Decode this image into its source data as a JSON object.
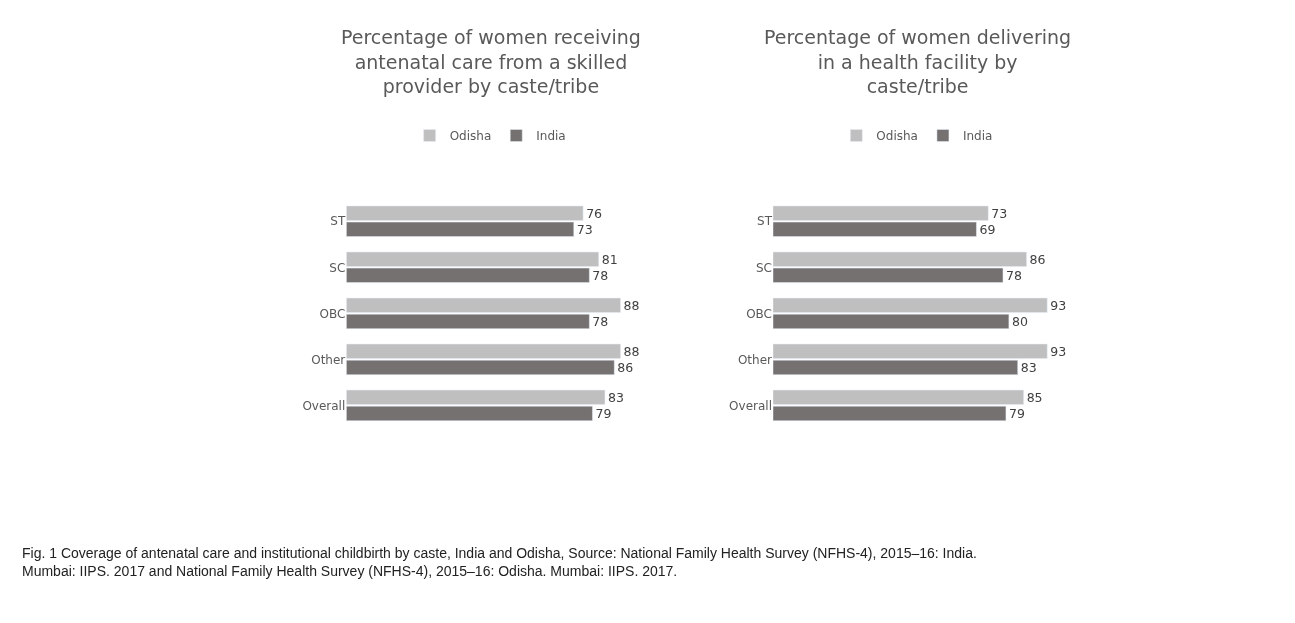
{
  "chart_data": [
    {
      "type": "bar",
      "orientation": "horizontal",
      "title": "Percentage of women receiving antenatal care from a skilled provider by caste/tribe",
      "categories": [
        "ST",
        "SC",
        "OBC",
        "Other",
        "Overall"
      ],
      "series": [
        {
          "name": "Odisha",
          "color": "#bfbfbf",
          "values": [
            76,
            81,
            88,
            88,
            83
          ]
        },
        {
          "name": "India",
          "color": "#767171",
          "values": [
            73,
            78,
            78,
            86,
            79
          ]
        }
      ],
      "data_labels": true,
      "legend": "top",
      "annotations": [
        "Fig. 1 Coverage of antenatal care and institutional childbirth by caste, India and Odisha, Source: National Family Health Survey (NFHS-4), 2015–16: India. Mumbai: IIPS. 2017 and National Family Health Survey (NFHS-4), 2015–16: Odisha. Mumbai: IIPS. 2017."
      ]
    },
    {
      "type": "bar",
      "orientation": "horizontal",
      "title": "Percentage of women delivering in a health facility by caste/tribe",
      "categories": [
        "ST",
        "SC",
        "OBC",
        "Other",
        "Overall"
      ],
      "series": [
        {
          "name": "Odisha",
          "color": "#bfbfbf",
          "values": [
            73,
            86,
            93,
            93,
            85
          ]
        },
        {
          "name": "India",
          "color": "#767171",
          "values": [
            69,
            78,
            80,
            83,
            79
          ]
        }
      ],
      "data_labels": true,
      "legend": "top"
    }
  ]
}
